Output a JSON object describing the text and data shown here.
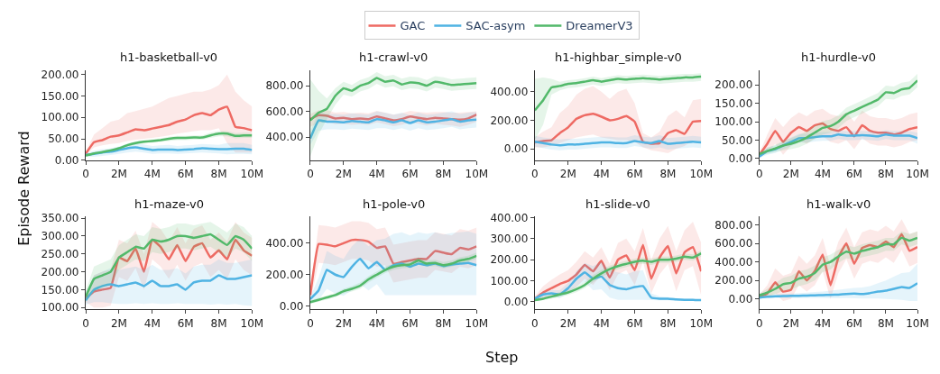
{
  "chart_data": [
    {
      "type": "line",
      "title": "h1-basketball-v0",
      "ylabel": "Episode Reward",
      "legend": "top",
      "x": [
        0,
        500000,
        1000000,
        1500000,
        2000000,
        2500000,
        3000000,
        3500000,
        4000000,
        4500000,
        5000000,
        5500000,
        6000000,
        6500000,
        7000000,
        7500000,
        8000000,
        8500000,
        9000000,
        9500000,
        10000000
      ],
      "xlim": [
        0,
        10000000
      ],
      "xticks": [
        0,
        {
          "value": 2000000,
          "label": "2M"
        },
        {
          "value": 4000000,
          "label": "4M"
        },
        {
          "value": 6000000,
          "label": "6M"
        },
        {
          "value": 8000000,
          "label": "8M"
        },
        {
          "value": 10000000,
          "label": "10M"
        }
      ],
      "ylim": [
        0,
        210
      ],
      "yticks": [
        {
          "value": 0,
          "label": "0.00"
        },
        {
          "value": 50,
          "label": "50.00"
        },
        {
          "value": 100,
          "label": "100.00"
        },
        {
          "value": 150,
          "label": "150.00"
        },
        {
          "value": 200,
          "label": "200.00"
        }
      ],
      "series": [
        {
          "name": "GAC",
          "color": "#ee6a63",
          "values": [
            15,
            42,
            47,
            55,
            58,
            65,
            72,
            70,
            74,
            78,
            82,
            90,
            95,
            105,
            110,
            105,
            118,
            125,
            78,
            75,
            70
          ],
          "lower": [
            12,
            30,
            35,
            38,
            40,
            45,
            48,
            50,
            52,
            55,
            58,
            62,
            65,
            68,
            70,
            70,
            75,
            40,
            18,
            18,
            18
          ],
          "upper": [
            20,
            60,
            75,
            90,
            95,
            110,
            115,
            120,
            125,
            135,
            145,
            150,
            155,
            160,
            160,
            165,
            175,
            200,
            160,
            140,
            125
          ]
        },
        {
          "name": "SAC-asym",
          "color": "#4fb3e3",
          "values": [
            12,
            15,
            18,
            20,
            24,
            28,
            30,
            27,
            24,
            25,
            25,
            24,
            25,
            26,
            28,
            27,
            26,
            26,
            27,
            27,
            24
          ],
          "lower": [
            8,
            8,
            10,
            12,
            15,
            18,
            20,
            18,
            15,
            16,
            16,
            15,
            16,
            17,
            18,
            17,
            16,
            14,
            15,
            15,
            14
          ],
          "upper": [
            16,
            22,
            26,
            28,
            32,
            38,
            40,
            37,
            33,
            35,
            36,
            33,
            35,
            36,
            38,
            37,
            36,
            40,
            40,
            40,
            36
          ]
        },
        {
          "name": "DreamerV3",
          "color": "#52b96a",
          "values": [
            11,
            16,
            19,
            23,
            28,
            35,
            40,
            43,
            45,
            47,
            50,
            52,
            52,
            53,
            53,
            58,
            62,
            62,
            57,
            58,
            58
          ],
          "lower": [
            9,
            13,
            16,
            20,
            25,
            31,
            36,
            39,
            41,
            43,
            45,
            47,
            47,
            48,
            48,
            52,
            56,
            56,
            51,
            52,
            52
          ],
          "upper": [
            13,
            19,
            22,
            26,
            31,
            39,
            44,
            47,
            49,
            51,
            55,
            57,
            57,
            58,
            58,
            64,
            68,
            68,
            63,
            64,
            64
          ]
        }
      ]
    },
    {
      "type": "line",
      "title": "h1-crawl-v0",
      "x": [
        0,
        500000,
        1000000,
        1500000,
        2000000,
        2500000,
        3000000,
        3500000,
        4000000,
        4500000,
        5000000,
        5500000,
        6000000,
        6500000,
        7000000,
        7500000,
        8000000,
        8500000,
        9000000,
        9500000,
        10000000
      ],
      "xlim": [
        0,
        10000000
      ],
      "xticks": [
        0,
        {
          "value": 2000000,
          "label": "2M"
        },
        {
          "value": 4000000,
          "label": "4M"
        },
        {
          "value": 6000000,
          "label": "6M"
        },
        {
          "value": 8000000,
          "label": "8M"
        },
        {
          "value": 10000000,
          "label": "10M"
        }
      ],
      "ylim": [
        220,
        920
      ],
      "yticks": [
        {
          "value": 400,
          "label": "400.00"
        },
        {
          "value": 600,
          "label": "600.00"
        },
        {
          "value": 800,
          "label": "800.00"
        }
      ],
      "series": [
        {
          "name": "GAC",
          "color": "#ee6a63",
          "values": [
            540,
            570,
            565,
            545,
            550,
            540,
            545,
            540,
            560,
            545,
            530,
            540,
            560,
            550,
            540,
            550,
            545,
            540,
            535,
            545,
            575
          ],
          "lower": [
            480,
            510,
            520,
            500,
            505,
            495,
            500,
            495,
            515,
            500,
            485,
            495,
            515,
            505,
            490,
            505,
            495,
            490,
            480,
            495,
            520
          ],
          "upper": [
            580,
            610,
            610,
            590,
            595,
            585,
            590,
            585,
            605,
            590,
            575,
            585,
            605,
            595,
            590,
            595,
            595,
            590,
            590,
            595,
            600
          ]
        },
        {
          "name": "SAC-asym",
          "color": "#4fb3e3",
          "values": [
            390,
            530,
            520,
            520,
            515,
            525,
            520,
            515,
            540,
            530,
            515,
            530,
            510,
            530,
            515,
            520,
            530,
            540,
            520,
            530,
            535
          ],
          "lower": [
            340,
            450,
            460,
            460,
            455,
            465,
            460,
            455,
            470,
            470,
            455,
            470,
            450,
            470,
            455,
            460,
            470,
            480,
            460,
            470,
            475
          ],
          "upper": [
            440,
            600,
            580,
            580,
            575,
            585,
            580,
            575,
            600,
            590,
            575,
            590,
            570,
            590,
            575,
            580,
            590,
            600,
            580,
            590,
            595
          ]
        },
        {
          "name": "DreamerV3",
          "color": "#52b96a",
          "values": [
            530,
            590,
            620,
            720,
            780,
            760,
            800,
            820,
            860,
            830,
            840,
            810,
            825,
            820,
            800,
            830,
            820,
            805,
            810,
            815,
            820
          ],
          "lower": [
            250,
            420,
            540,
            650,
            730,
            715,
            755,
            775,
            815,
            785,
            795,
            765,
            780,
            775,
            755,
            785,
            775,
            760,
            765,
            770,
            775
          ],
          "upper": [
            850,
            760,
            700,
            780,
            830,
            805,
            845,
            865,
            905,
            875,
            885,
            855,
            870,
            865,
            845,
            875,
            865,
            850,
            855,
            860,
            865
          ]
        }
      ]
    },
    {
      "type": "line",
      "title": "h1-highbar_simple-v0",
      "x": [
        0,
        500000,
        1000000,
        1500000,
        2000000,
        2500000,
        3000000,
        3500000,
        4000000,
        4500000,
        5000000,
        5500000,
        6000000,
        6500000,
        7000000,
        7500000,
        8000000,
        8500000,
        9000000,
        9500000,
        10000000
      ],
      "xlim": [
        0,
        10000000
      ],
      "xticks": [
        0,
        {
          "value": 2000000,
          "label": "2M"
        },
        {
          "value": 4000000,
          "label": "4M"
        },
        {
          "value": 6000000,
          "label": "6M"
        },
        {
          "value": 8000000,
          "label": "8M"
        },
        {
          "value": 10000000,
          "label": "10M"
        }
      ],
      "ylim": [
        -80,
        550
      ],
      "yticks": [
        {
          "value": 0,
          "label": "0.00"
        },
        {
          "value": 200,
          "label": "200.00"
        },
        {
          "value": 400,
          "label": "400.00"
        }
      ],
      "series": [
        {
          "name": "GAC",
          "color": "#ee6a63",
          "values": [
            45,
            55,
            60,
            110,
            150,
            210,
            235,
            245,
            225,
            200,
            210,
            230,
            190,
            50,
            35,
            40,
            110,
            130,
            105,
            190,
            195
          ],
          "lower": [
            10,
            10,
            20,
            40,
            60,
            80,
            90,
            100,
            80,
            70,
            60,
            60,
            50,
            10,
            -10,
            -20,
            -30,
            0,
            20,
            60,
            50
          ],
          "upper": [
            80,
            120,
            150,
            250,
            300,
            380,
            420,
            440,
            400,
            350,
            400,
            420,
            320,
            110,
            80,
            120,
            230,
            270,
            220,
            340,
            350
          ]
        },
        {
          "name": "SAC-asym",
          "color": "#4fb3e3",
          "values": [
            50,
            40,
            30,
            25,
            30,
            30,
            35,
            40,
            45,
            45,
            40,
            40,
            55,
            45,
            40,
            55,
            35,
            40,
            45,
            50,
            45
          ],
          "lower": [
            15,
            5,
            -5,
            -10,
            -5,
            -5,
            0,
            5,
            10,
            10,
            5,
            5,
            20,
            10,
            0,
            10,
            -5,
            0,
            5,
            10,
            5
          ],
          "upper": [
            90,
            80,
            70,
            65,
            70,
            70,
            75,
            80,
            85,
            85,
            80,
            80,
            95,
            85,
            80,
            95,
            75,
            80,
            85,
            90,
            85
          ]
        },
        {
          "name": "DreamerV3",
          "color": "#52b96a",
          "values": [
            270,
            340,
            430,
            440,
            455,
            460,
            470,
            480,
            470,
            480,
            490,
            485,
            490,
            495,
            490,
            485,
            490,
            495,
            500,
            500,
            505
          ],
          "lower": [
            60,
            170,
            380,
            410,
            425,
            430,
            440,
            450,
            440,
            450,
            460,
            455,
            460,
            465,
            460,
            455,
            460,
            465,
            470,
            470,
            475
          ],
          "upper": [
            490,
            500,
            490,
            470,
            480,
            485,
            495,
            505,
            495,
            505,
            515,
            510,
            515,
            520,
            515,
            510,
            515,
            520,
            525,
            525,
            530
          ]
        }
      ]
    },
    {
      "type": "line",
      "title": "h1-hurdle-v0",
      "x": [
        0,
        500000,
        1000000,
        1500000,
        2000000,
        2500000,
        3000000,
        3500000,
        4000000,
        4500000,
        5000000,
        5500000,
        6000000,
        6500000,
        7000000,
        7500000,
        8000000,
        8500000,
        9000000,
        9500000,
        10000000
      ],
      "xlim": [
        0,
        10000000
      ],
      "xticks": [
        0,
        {
          "value": 2000000,
          "label": "2M"
        },
        {
          "value": 4000000,
          "label": "4M"
        },
        {
          "value": 6000000,
          "label": "6M"
        },
        {
          "value": 8000000,
          "label": "8M"
        },
        {
          "value": 10000000,
          "label": "10M"
        }
      ],
      "ylim": [
        -5,
        240
      ],
      "yticks": [
        {
          "value": 0,
          "label": "0.00"
        },
        {
          "value": 50,
          "label": "50.00"
        },
        {
          "value": 100,
          "label": "100.00"
        },
        {
          "value": 150,
          "label": "150.00"
        },
        {
          "value": 200,
          "label": "200.00"
        }
      ],
      "series": [
        {
          "name": "GAC",
          "color": "#ee6a63",
          "values": [
            10,
            40,
            75,
            45,
            70,
            85,
            75,
            90,
            95,
            80,
            75,
            85,
            60,
            90,
            75,
            70,
            70,
            65,
            70,
            80,
            85
          ],
          "lower": [
            5,
            15,
            40,
            10,
            35,
            50,
            40,
            55,
            60,
            45,
            40,
            50,
            25,
            55,
            40,
            35,
            35,
            30,
            35,
            45,
            50
          ],
          "upper": [
            15,
            65,
            110,
            85,
            110,
            125,
            115,
            130,
            135,
            120,
            115,
            125,
            100,
            130,
            115,
            110,
            110,
            105,
            110,
            120,
            125
          ]
        },
        {
          "name": "SAC-asym",
          "color": "#4fb3e3",
          "values": [
            5,
            20,
            25,
            35,
            45,
            55,
            55,
            58,
            60,
            60,
            65,
            62,
            62,
            63,
            62,
            60,
            65,
            62,
            62,
            62,
            55
          ],
          "lower": [
            2,
            10,
            15,
            25,
            33,
            43,
            43,
            46,
            48,
            48,
            53,
            50,
            50,
            51,
            50,
            48,
            53,
            50,
            50,
            50,
            40
          ],
          "upper": [
            8,
            30,
            35,
            45,
            57,
            67,
            67,
            70,
            72,
            72,
            77,
            74,
            74,
            75,
            74,
            72,
            77,
            74,
            74,
            74,
            70
          ]
        },
        {
          "name": "DreamerV3",
          "color": "#52b96a",
          "values": [
            12,
            20,
            27,
            35,
            40,
            47,
            57,
            70,
            83,
            88,
            100,
            120,
            130,
            140,
            150,
            160,
            180,
            178,
            188,
            192,
            212
          ],
          "lower": [
            8,
            12,
            17,
            22,
            25,
            30,
            40,
            52,
            65,
            70,
            82,
            102,
            112,
            122,
            132,
            142,
            162,
            160,
            170,
            174,
            194
          ],
          "upper": [
            16,
            28,
            37,
            48,
            55,
            64,
            74,
            88,
            101,
            106,
            118,
            138,
            148,
            158,
            168,
            178,
            198,
            196,
            206,
            210,
            230
          ]
        }
      ]
    },
    {
      "type": "line",
      "title": "h1-maze-v0",
      "x": [
        0,
        500000,
        1000000,
        1500000,
        2000000,
        2500000,
        3000000,
        3500000,
        4000000,
        4500000,
        5000000,
        5500000,
        6000000,
        6500000,
        7000000,
        7500000,
        8000000,
        8500000,
        9000000,
        9500000,
        10000000
      ],
      "xlim": [
        0,
        10000000
      ],
      "xticks": [
        0,
        {
          "value": 2000000,
          "label": "2M"
        },
        {
          "value": 4000000,
          "label": "4M"
        },
        {
          "value": 6000000,
          "label": "6M"
        },
        {
          "value": 8000000,
          "label": "8M"
        },
        {
          "value": 10000000,
          "label": "10M"
        }
      ],
      "ylim": [
        95,
        355
      ],
      "yticks": [
        {
          "value": 100,
          "label": "100.00"
        },
        {
          "value": 150,
          "label": "150.00"
        },
        {
          "value": 200,
          "label": "200.00"
        },
        {
          "value": 250,
          "label": "250.00"
        },
        {
          "value": 300,
          "label": "300.00"
        },
        {
          "value": 350,
          "label": "350.00"
        }
      ],
      "series": [
        {
          "name": "GAC",
          "color": "#ee6a63",
          "values": [
            125,
            145,
            150,
            155,
            240,
            230,
            265,
            200,
            290,
            270,
            235,
            275,
            230,
            270,
            280,
            240,
            260,
            235,
            290,
            260,
            245
          ],
          "lower": [
            115,
            100,
            100,
            105,
            185,
            175,
            210,
            150,
            235,
            215,
            180,
            220,
            175,
            215,
            225,
            185,
            205,
            180,
            235,
            205,
            190
          ],
          "upper": [
            135,
            190,
            200,
            205,
            290,
            280,
            315,
            250,
            340,
            320,
            285,
            325,
            280,
            320,
            330,
            290,
            310,
            285,
            340,
            310,
            295
          ]
        },
        {
          "name": "SAC-asym",
          "color": "#4fb3e3",
          "values": [
            120,
            150,
            160,
            165,
            160,
            165,
            170,
            160,
            175,
            160,
            160,
            165,
            150,
            170,
            175,
            175,
            190,
            180,
            180,
            185,
            190
          ],
          "lower": [
            108,
            115,
            115,
            112,
            110,
            110,
            112,
            110,
            112,
            110,
            110,
            112,
            110,
            110,
            110,
            108,
            110,
            108,
            110,
            106,
            104
          ],
          "upper": [
            140,
            190,
            200,
            210,
            205,
            210,
            215,
            205,
            220,
            205,
            205,
            210,
            195,
            215,
            220,
            220,
            235,
            225,
            225,
            230,
            235
          ]
        },
        {
          "name": "DreamerV3",
          "color": "#52b96a",
          "values": [
            130,
            180,
            190,
            200,
            240,
            255,
            270,
            265,
            290,
            285,
            290,
            300,
            300,
            295,
            300,
            305,
            290,
            275,
            300,
            290,
            265
          ],
          "lower": [
            115,
            145,
            155,
            165,
            205,
            220,
            235,
            230,
            255,
            250,
            255,
            265,
            265,
            260,
            265,
            270,
            255,
            240,
            265,
            255,
            230
          ],
          "upper": [
            145,
            215,
            225,
            235,
            275,
            290,
            305,
            300,
            325,
            320,
            325,
            335,
            335,
            330,
            335,
            340,
            325,
            310,
            335,
            325,
            300
          ]
        }
      ]
    },
    {
      "type": "line",
      "title": "h1-pole-v0",
      "xlabel": "Step",
      "x": [
        0,
        500000,
        1000000,
        1500000,
        2000000,
        2500000,
        3000000,
        3500000,
        4000000,
        4500000,
        5000000,
        5500000,
        6000000,
        6500000,
        7000000,
        7500000,
        8000000,
        8500000,
        9000000,
        9500000,
        10000000
      ],
      "xlim": [
        0,
        10000000
      ],
      "xticks": [
        0,
        {
          "value": 2000000,
          "label": "2M"
        },
        {
          "value": 4000000,
          "label": "4M"
        },
        {
          "value": 6000000,
          "label": "6M"
        },
        {
          "value": 8000000,
          "label": "8M"
        },
        {
          "value": 10000000,
          "label": "10M"
        }
      ],
      "ylim": [
        -20,
        570
      ],
      "yticks": [
        {
          "value": 0,
          "label": "0.00"
        },
        {
          "value": 200,
          "label": "200.00"
        },
        {
          "value": 400,
          "label": "400.00"
        }
      ],
      "series": [
        {
          "name": "GAC",
          "color": "#ee6a63",
          "values": [
            70,
            395,
            390,
            380,
            400,
            420,
            420,
            410,
            370,
            380,
            270,
            280,
            290,
            300,
            300,
            350,
            340,
            330,
            370,
            360,
            380
          ],
          "lower": [
            30,
            275,
            270,
            260,
            280,
            300,
            300,
            290,
            250,
            260,
            150,
            160,
            170,
            180,
            180,
            230,
            220,
            210,
            250,
            240,
            260
          ],
          "upper": [
            110,
            515,
            510,
            500,
            520,
            540,
            540,
            530,
            490,
            500,
            390,
            400,
            410,
            420,
            420,
            470,
            460,
            450,
            490,
            480,
            500
          ]
        },
        {
          "name": "SAC-asym",
          "color": "#4fb3e3",
          "values": [
            45,
            100,
            230,
            200,
            185,
            250,
            300,
            240,
            280,
            230,
            260,
            270,
            250,
            270,
            260,
            270,
            255,
            265,
            270,
            275,
            260
          ],
          "lower": [
            30,
            40,
            110,
            80,
            65,
            100,
            140,
            100,
            140,
            70,
            70,
            70,
            70,
            70,
            70,
            70,
            70,
            70,
            70,
            70,
            70
          ],
          "upper": [
            60,
            180,
            350,
            320,
            300,
            380,
            430,
            380,
            420,
            430,
            460,
            470,
            450,
            470,
            460,
            470,
            455,
            465,
            470,
            475,
            460
          ]
        },
        {
          "name": "DreamerV3",
          "color": "#52b96a",
          "values": [
            25,
            40,
            55,
            70,
            95,
            110,
            130,
            170,
            200,
            230,
            250,
            260,
            265,
            290,
            270,
            275,
            260,
            270,
            290,
            300,
            320
          ],
          "lower": [
            15,
            28,
            43,
            57,
            80,
            93,
            110,
            150,
            180,
            210,
            230,
            240,
            245,
            270,
            250,
            255,
            240,
            250,
            270,
            280,
            300
          ],
          "upper": [
            35,
            52,
            67,
            83,
            110,
            127,
            150,
            190,
            220,
            250,
            270,
            280,
            285,
            310,
            290,
            295,
            280,
            290,
            310,
            320,
            340
          ]
        }
      ]
    },
    {
      "type": "line",
      "title": "h1-slide-v0",
      "x": [
        0,
        500000,
        1000000,
        1500000,
        2000000,
        2500000,
        3000000,
        3500000,
        4000000,
        4500000,
        5000000,
        5500000,
        6000000,
        6500000,
        7000000,
        7500000,
        8000000,
        8500000,
        9000000,
        9500000,
        10000000
      ],
      "xlim": [
        0,
        10000000
      ],
      "xticks": [
        0,
        {
          "value": 2000000,
          "label": "2M"
        },
        {
          "value": 4000000,
          "label": "4M"
        },
        {
          "value": 6000000,
          "label": "6M"
        },
        {
          "value": 8000000,
          "label": "8M"
        },
        {
          "value": 10000000,
          "label": "10M"
        }
      ],
      "ylim": [
        -35,
        405
      ],
      "yticks": [
        {
          "value": 0,
          "label": "0.00"
        },
        {
          "value": 100,
          "label": "100.00"
        },
        {
          "value": 200,
          "label": "200.00"
        },
        {
          "value": 300,
          "label": "300.00"
        },
        {
          "value": 400,
          "label": "400.00"
        }
      ],
      "series": [
        {
          "name": "GAC",
          "color": "#ee6a63",
          "values": [
            15,
            45,
            65,
            85,
            100,
            130,
            175,
            145,
            195,
            115,
            200,
            220,
            150,
            270,
            110,
            210,
            265,
            135,
            235,
            260,
            145
          ],
          "lower": [
            5,
            15,
            25,
            40,
            50,
            70,
            110,
            80,
            130,
            55,
            130,
            150,
            80,
            190,
            40,
            130,
            180,
            50,
            150,
            170,
            30
          ],
          "upper": [
            25,
            75,
            105,
            130,
            150,
            190,
            240,
            210,
            260,
            180,
            280,
            300,
            240,
            350,
            200,
            300,
            360,
            240,
            340,
            380,
            280
          ]
        },
        {
          "name": "SAC-asym",
          "color": "#4fb3e3",
          "values": [
            15,
            35,
            40,
            35,
            65,
            110,
            140,
            110,
            120,
            80,
            65,
            60,
            70,
            75,
            20,
            15,
            15,
            12,
            10,
            10,
            8
          ],
          "lower": [
            8,
            22,
            25,
            18,
            40,
            75,
            95,
            55,
            60,
            20,
            10,
            10,
            10,
            10,
            8,
            7,
            7,
            6,
            5,
            5,
            4
          ],
          "upper": [
            22,
            48,
            55,
            55,
            90,
            145,
            185,
            170,
            190,
            150,
            140,
            130,
            145,
            150,
            40,
            25,
            22,
            18,
            15,
            15,
            12
          ]
        },
        {
          "name": "DreamerV3",
          "color": "#52b96a",
          "values": [
            8,
            15,
            25,
            35,
            45,
            60,
            80,
            110,
            135,
            155,
            170,
            180,
            190,
            195,
            190,
            200,
            200,
            205,
            215,
            210,
            230
          ],
          "lower": [
            3,
            8,
            15,
            23,
            33,
            46,
            65,
            93,
            118,
            138,
            155,
            165,
            175,
            180,
            175,
            185,
            185,
            190,
            200,
            195,
            215
          ],
          "upper": [
            13,
            22,
            35,
            47,
            57,
            74,
            95,
            127,
            152,
            172,
            185,
            195,
            205,
            210,
            205,
            215,
            215,
            220,
            230,
            225,
            245
          ]
        }
      ]
    },
    {
      "type": "line",
      "title": "h1-walk-v0",
      "x": [
        0,
        500000,
        1000000,
        1500000,
        2000000,
        2500000,
        3000000,
        3500000,
        4000000,
        4500000,
        5000000,
        5500000,
        6000000,
        6500000,
        7000000,
        7500000,
        8000000,
        8500000,
        9000000,
        9500000,
        10000000
      ],
      "xlim": [
        0,
        10000000
      ],
      "xticks": [
        0,
        {
          "value": 2000000,
          "label": "2M"
        },
        {
          "value": 4000000,
          "label": "4M"
        },
        {
          "value": 6000000,
          "label": "6M"
        },
        {
          "value": 8000000,
          "label": "8M"
        },
        {
          "value": 10000000,
          "label": "10M"
        }
      ],
      "ylim": [
        -110,
        890
      ],
      "yticks": [
        {
          "value": 0,
          "label": "0.00"
        },
        {
          "value": 200,
          "label": "200.00"
        },
        {
          "value": 400,
          "label": "400.00"
        },
        {
          "value": 600,
          "label": "600.00"
        },
        {
          "value": 800,
          "label": "800.00"
        }
      ],
      "series": [
        {
          "name": "GAC",
          "color": "#ee6a63",
          "values": [
            30,
            60,
            180,
            80,
            100,
            300,
            200,
            300,
            480,
            150,
            450,
            600,
            380,
            550,
            580,
            560,
            620,
            560,
            700,
            520,
            560
          ],
          "lower": [
            10,
            20,
            60,
            -20,
            0,
            150,
            80,
            150,
            300,
            0,
            280,
            430,
            220,
            380,
            410,
            390,
            450,
            390,
            530,
            350,
            390
          ],
          "upper": [
            50,
            150,
            330,
            250,
            280,
            470,
            380,
            470,
            660,
            350,
            620,
            770,
            560,
            720,
            750,
            730,
            790,
            730,
            860,
            700,
            730
          ]
        },
        {
          "name": "SAC-asym",
          "color": "#4fb3e3",
          "values": [
            15,
            25,
            30,
            32,
            35,
            35,
            38,
            40,
            42,
            45,
            48,
            55,
            58,
            55,
            65,
            80,
            90,
            110,
            130,
            120,
            170
          ],
          "lower": [
            5,
            10,
            12,
            12,
            12,
            10,
            10,
            10,
            10,
            8,
            8,
            10,
            8,
            5,
            5,
            5,
            0,
            -5,
            -10,
            -20,
            -20
          ],
          "upper": [
            25,
            40,
            50,
            55,
            60,
            65,
            70,
            75,
            80,
            90,
            100,
            110,
            120,
            125,
            140,
            170,
            200,
            240,
            280,
            290,
            380
          ]
        },
        {
          "name": "DreamerV3",
          "color": "#52b96a",
          "values": [
            40,
            70,
            110,
            160,
            175,
            220,
            240,
            280,
            370,
            400,
            460,
            510,
            490,
            520,
            540,
            560,
            590,
            590,
            660,
            630,
            660
          ],
          "lower": [
            20,
            30,
            50,
            90,
            100,
            140,
            160,
            200,
            290,
            320,
            390,
            440,
            420,
            450,
            470,
            490,
            520,
            520,
            590,
            560,
            590
          ],
          "upper": [
            60,
            110,
            170,
            230,
            250,
            300,
            320,
            360,
            450,
            480,
            530,
            580,
            560,
            590,
            610,
            630,
            660,
            660,
            730,
            700,
            730
          ]
        }
      ]
    }
  ]
}
